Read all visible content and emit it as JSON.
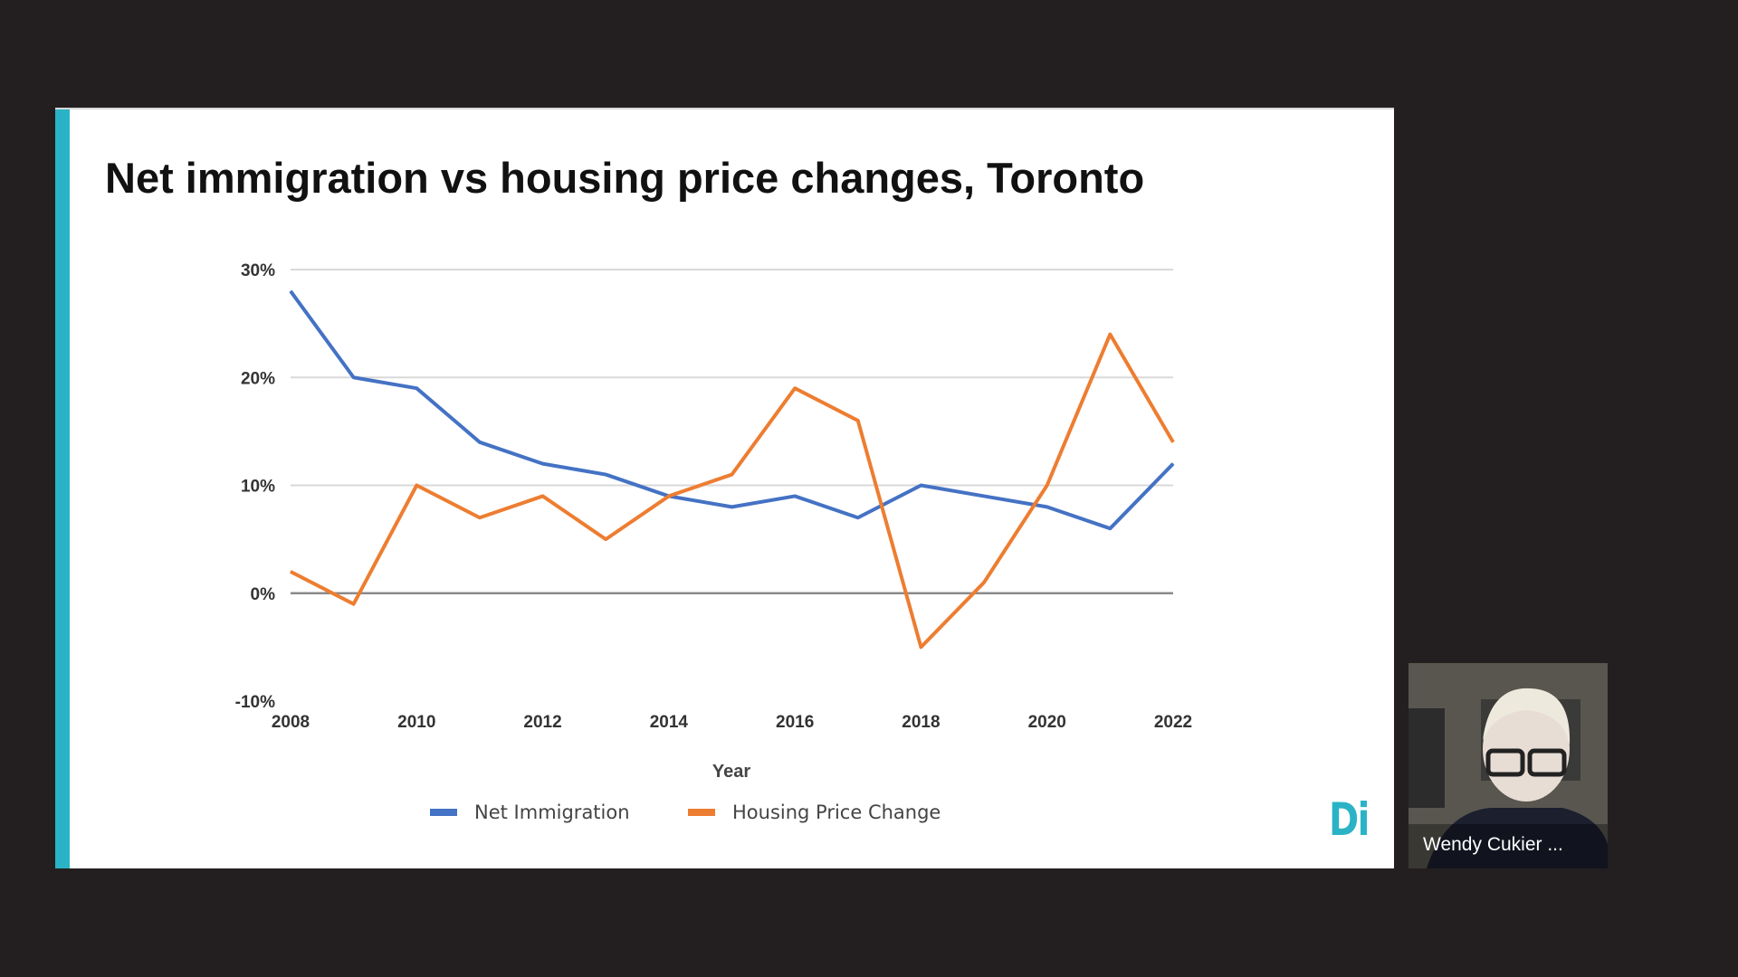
{
  "slide": {
    "title": "Net immigration vs housing price changes, Toronto",
    "logo_text": "Di",
    "accent_color": "#2ab3c6"
  },
  "video_tile": {
    "participant_name": "Wendy Cukier ..."
  },
  "chart_data": {
    "type": "line",
    "title": "",
    "xlabel": "Year",
    "ylabel": "",
    "x": [
      2008,
      2009,
      2010,
      2011,
      2012,
      2013,
      2014,
      2015,
      2016,
      2017,
      2018,
      2019,
      2020,
      2021,
      2022
    ],
    "x_tick_labels": [
      "2008",
      "2010",
      "2012",
      "2014",
      "2016",
      "2018",
      "2020",
      "2022"
    ],
    "y_tick_labels": [
      "30%",
      "20%",
      "10%",
      "0%",
      "-10%"
    ],
    "ylim": [
      -10,
      30
    ],
    "y_unit": "%",
    "grid": true,
    "legend_position": "bottom",
    "series": [
      {
        "name": "Net Immigration",
        "color": "#4472c4",
        "values": [
          28,
          20,
          19,
          14,
          12,
          11,
          9,
          8,
          9,
          7,
          10,
          9,
          8,
          6,
          12
        ]
      },
      {
        "name": "Housing Price Change",
        "color": "#ed7d31",
        "values": [
          2,
          -1,
          10,
          7,
          9,
          5,
          9,
          11,
          19,
          16,
          -5,
          1,
          10,
          24,
          14
        ]
      }
    ]
  }
}
